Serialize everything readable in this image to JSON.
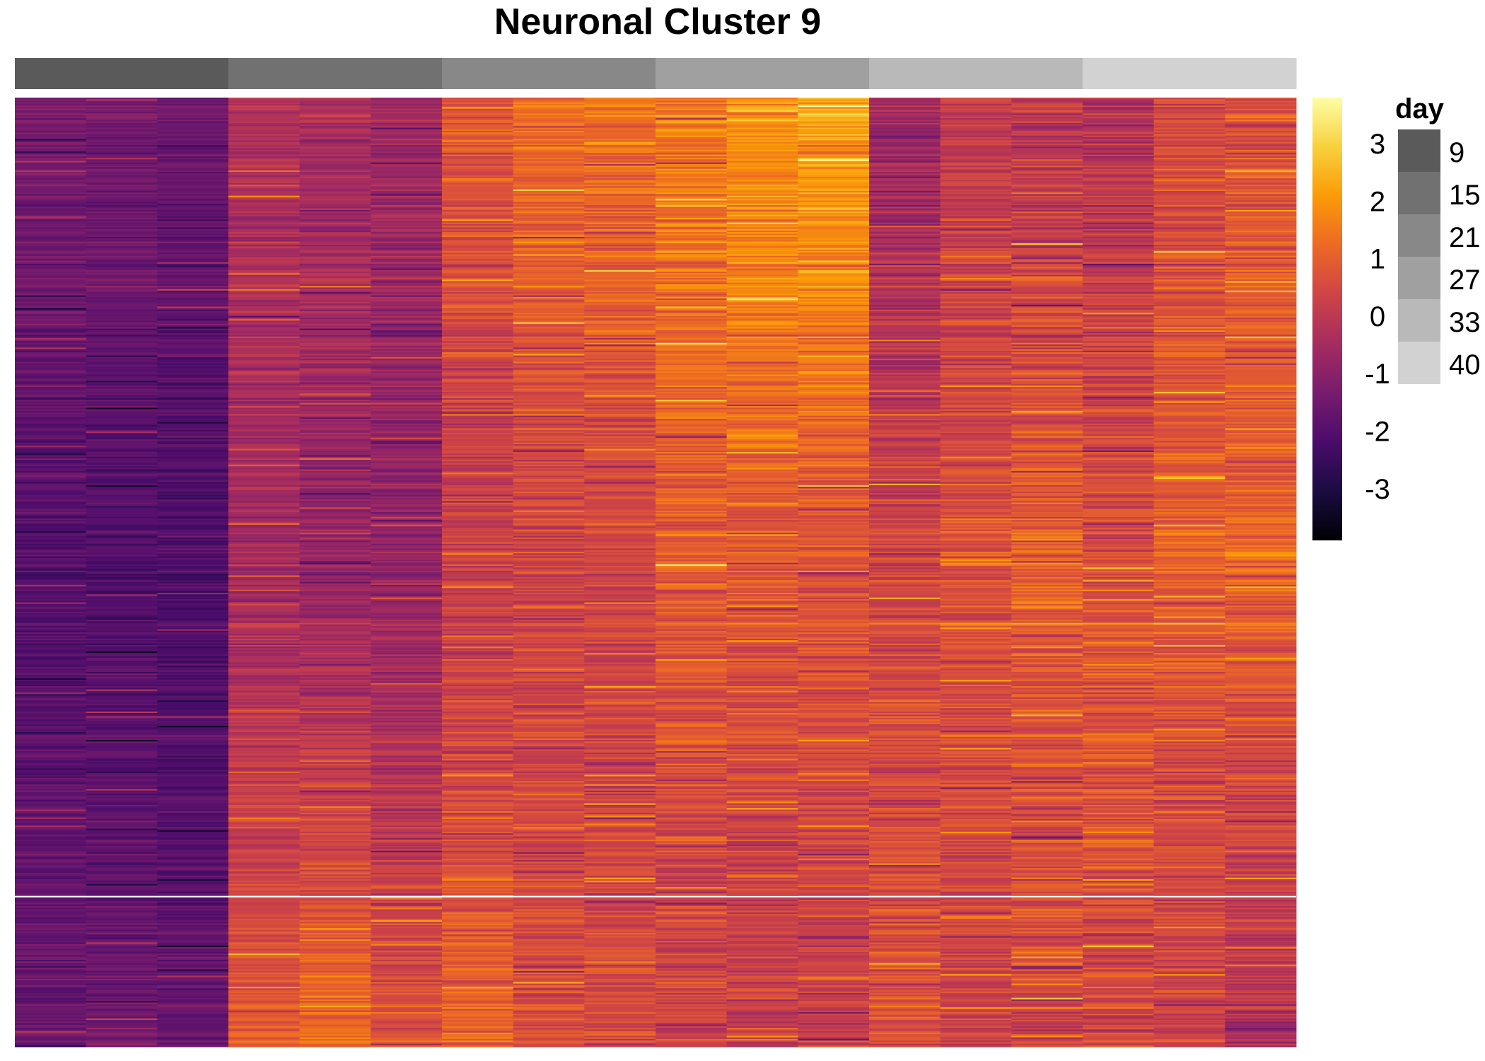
{
  "chart_data": {
    "type": "heatmap",
    "title": "Neuronal Cluster 9",
    "colormap": "inferno",
    "color_scale": {
      "min": -3.9,
      "max": 3.8,
      "ticks": [
        "3",
        "2",
        "1",
        "0",
        "-1",
        "-2",
        "-3"
      ],
      "tick_values": [
        3,
        2,
        1,
        0,
        -1,
        -2,
        -3
      ],
      "stops": [
        "#000004",
        "#1b0c41",
        "#4a0c6b",
        "#781c6d",
        "#a52c60",
        "#cf4446",
        "#ed6925",
        "#fb9b06",
        "#f7d13d",
        "#fcffa4"
      ]
    },
    "annotation": {
      "name": "day",
      "levels": [
        "9",
        "15",
        "21",
        "27",
        "33",
        "40"
      ],
      "colors": [
        "#5a5a5a",
        "#717171",
        "#888888",
        "#a0a0a0",
        "#b9b9b9",
        "#d2d2d2"
      ],
      "columns_per_level": 3
    },
    "n_columns": 18,
    "n_rows": 600,
    "column_day": [
      "9",
      "9",
      "9",
      "15",
      "15",
      "15",
      "21",
      "21",
      "21",
      "27",
      "27",
      "27",
      "33",
      "33",
      "33",
      "40",
      "40",
      "40"
    ],
    "column_profiles": [
      {
        "top": -1.3,
        "mid": -2.0,
        "bottom": -1.6,
        "noise": 0.28
      },
      {
        "top": -1.4,
        "mid": -2.1,
        "bottom": -1.5,
        "noise": 0.28
      },
      {
        "top": -1.5,
        "mid": -2.2,
        "bottom": -1.7,
        "noise": 0.28
      },
      {
        "top": -0.2,
        "mid": -0.6,
        "bottom": 1.0,
        "noise": 0.4
      },
      {
        "top": -0.4,
        "mid": -0.8,
        "bottom": 1.3,
        "noise": 0.45
      },
      {
        "top": -0.6,
        "mid": -0.9,
        "bottom": 0.8,
        "noise": 0.45
      },
      {
        "top": 0.8,
        "mid": 0.1,
        "bottom": 1.1,
        "noise": 0.5
      },
      {
        "top": 1.3,
        "mid": 0.3,
        "bottom": 0.6,
        "noise": 0.5
      },
      {
        "top": 1.4,
        "mid": 0.3,
        "bottom": 0.5,
        "noise": 0.5
      },
      {
        "top": 1.5,
        "mid": 0.9,
        "bottom": 0.2,
        "noise": 0.55
      },
      {
        "top": 2.1,
        "mid": 0.8,
        "bottom": 0.1,
        "noise": 0.5
      },
      {
        "top": 2.3,
        "mid": 0.7,
        "bottom": 0.2,
        "noise": 0.5
      },
      {
        "top": -0.7,
        "mid": 0.5,
        "bottom": 0.6,
        "noise": 0.55
      },
      {
        "top": 0.1,
        "mid": 0.7,
        "bottom": 0.3,
        "noise": 0.5
      },
      {
        "top": 0.0,
        "mid": 0.9,
        "bottom": 0.4,
        "noise": 0.65
      },
      {
        "top": -0.3,
        "mid": 0.8,
        "bottom": 0.5,
        "noise": 0.6
      },
      {
        "top": 0.4,
        "mid": 1.0,
        "bottom": 0.2,
        "noise": 0.5
      },
      {
        "top": 0.7,
        "mid": 1.1,
        "bottom": -0.3,
        "noise": 0.55
      }
    ]
  }
}
